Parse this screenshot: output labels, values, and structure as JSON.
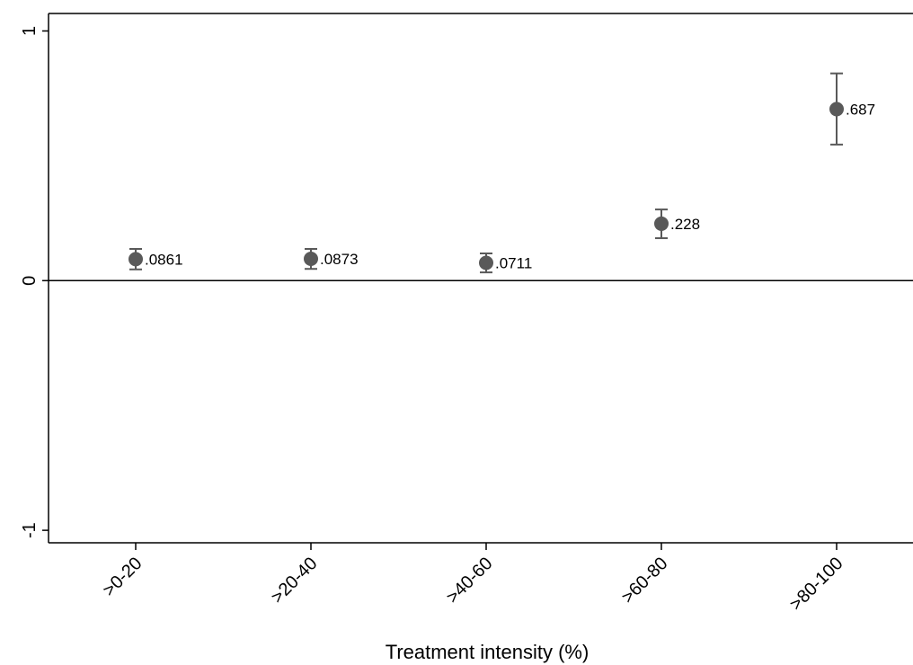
{
  "chart_data": {
    "type": "scatter",
    "title": "",
    "xlabel": "Treatment intensity (%)",
    "ylabel": "",
    "categories": [
      ">0-20",
      ">20-40",
      ">40-60",
      ">60-80",
      ">80-100"
    ],
    "values": [
      0.0861,
      0.0873,
      0.0711,
      0.228,
      0.687
    ],
    "value_labels": [
      ".0861",
      ".0873",
      ".0711",
      ".228",
      ".687"
    ],
    "ci_lower": [
      0.045,
      0.047,
      0.033,
      0.17,
      0.545
    ],
    "ci_upper": [
      0.127,
      0.127,
      0.109,
      0.285,
      0.83
    ],
    "ylim": [
      -1.05,
      1.07
    ],
    "yticks": [
      1,
      0,
      -1
    ],
    "ytick_labels": [
      "1",
      "0",
      "-1"
    ],
    "reference_line": 0,
    "grid": false,
    "legend": "none",
    "marker_color": "#595959",
    "errorbar_color": "#595959"
  }
}
